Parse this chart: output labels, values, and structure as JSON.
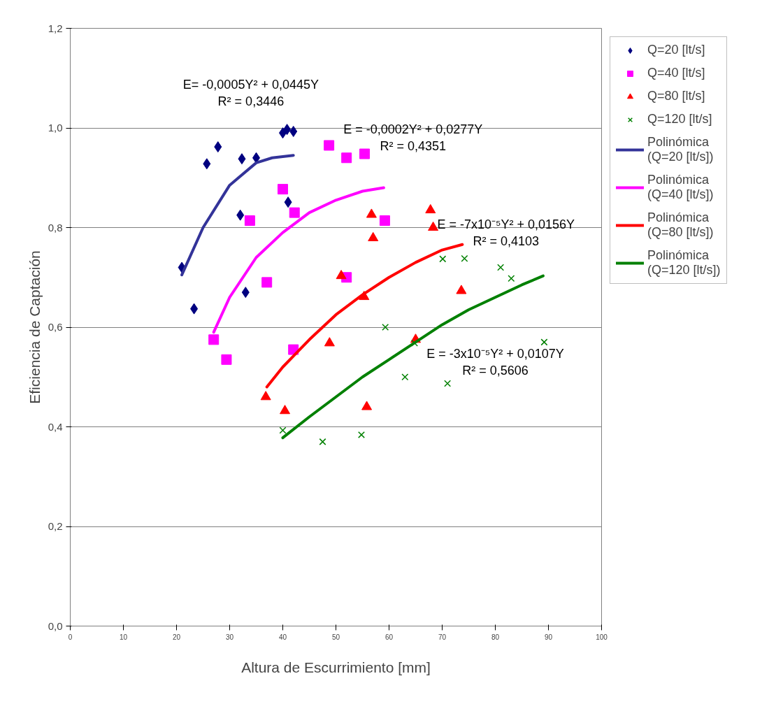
{
  "chart_data": {
    "type": "scatter",
    "xlabel": "Altura de Escurrimiento [mm]",
    "ylabel": "Eficiencia de Captación",
    "xlim": [
      0,
      100
    ],
    "xticks": [
      0,
      10,
      20,
      30,
      40,
      50,
      60,
      70,
      80,
      90,
      100
    ],
    "ylim": [
      0,
      1.2
    ],
    "yticks": [
      {
        "value": 0,
        "label": "0,0"
      },
      {
        "value": 0.2,
        "label": "0,2"
      },
      {
        "value": 0.4,
        "label": "0,4"
      },
      {
        "value": 0.6,
        "label": "0,6"
      },
      {
        "value": 0.8,
        "label": "0,8"
      },
      {
        "value": 1.0,
        "label": "1,0"
      },
      {
        "value": 1.2,
        "label": "1,2"
      }
    ],
    "grid": "y",
    "legend": "right",
    "annotations": [
      "E= -0,0005Y² + 0,0445Y\nR² = 0,3446",
      "E = -0,0002Y² + 0,0277Y\nR² = 0,4351",
      "E = -7x10⁻⁵Y² + 0,0156Y\nR² = 0,4103",
      "E = -3x10⁻⁵Y² + 0,0107Y\nR² = 0,5606"
    ],
    "series": [
      {
        "name": "Q=20 [lt/s]",
        "marker": "diamond",
        "color": "#000080",
        "x": [
          21,
          23.3,
          25.7,
          27.8,
          32,
          32.3,
          33,
          35,
          40,
          40.8,
          41,
          42
        ],
        "values": [
          0.72,
          0.637,
          0.928,
          0.962,
          0.825,
          0.938,
          0.67,
          0.94,
          0.99,
          0.997,
          0.851,
          0.993
        ]
      },
      {
        "name": "Q=40 [lt/s]",
        "marker": "square",
        "color": "#ff00ff",
        "x": [
          27,
          29.4,
          33.8,
          37,
          40,
          42,
          42.2,
          48.7,
          52,
          52,
          55.4,
          59.2
        ],
        "values": [
          0.575,
          0.535,
          0.814,
          0.69,
          0.877,
          0.555,
          0.83,
          0.965,
          0.94,
          0.7,
          0.948,
          0.814
        ]
      },
      {
        "name": "Q=80 [lt/s]",
        "marker": "triangle",
        "color": "#ff0000",
        "x": [
          36.8,
          40.4,
          48.8,
          51,
          55.3,
          55.8,
          56.7,
          57,
          65,
          67.8,
          68.3,
          73.6
        ],
        "values": [
          0.46,
          0.432,
          0.568,
          0.703,
          0.661,
          0.44,
          0.826,
          0.779,
          0.575,
          0.835,
          0.8,
          0.673
        ]
      },
      {
        "name": "Q=120 [lt/s]",
        "marker": "cross",
        "color": "#008000",
        "x": [
          40,
          47.5,
          54.8,
          59.3,
          63,
          64.8,
          70.1,
          71,
          74.2,
          81,
          83,
          89.2
        ],
        "values": [
          0.393,
          0.37,
          0.384,
          0.6,
          0.5,
          0.568,
          0.737,
          0.487,
          0.738,
          0.72,
          0.698,
          0.57
        ]
      },
      {
        "name": "Polinómica\n(Q=20 [lt/s])",
        "type": "line",
        "line_style": "solid",
        "color": "#333399",
        "x": [
          21,
          25,
          30,
          35,
          38,
          42
        ],
        "values": [
          0.705,
          0.8,
          0.885,
          0.93,
          0.94,
          0.945
        ]
      },
      {
        "name": "Polinómica\n(Q=40 [lt/s])",
        "type": "line",
        "line_style": "solid",
        "color": "#ff00ff",
        "x": [
          27,
          30,
          35,
          40,
          45,
          50,
          55,
          59
        ],
        "values": [
          0.59,
          0.66,
          0.74,
          0.79,
          0.83,
          0.855,
          0.873,
          0.88
        ]
      },
      {
        "name": "Polinómica\n(Q=80 [lt/s])",
        "type": "line",
        "line_style": "solid",
        "color": "#ff0000",
        "x": [
          37,
          40,
          45,
          50,
          55,
          60,
          65,
          70,
          73.8
        ],
        "values": [
          0.48,
          0.52,
          0.575,
          0.625,
          0.665,
          0.7,
          0.73,
          0.755,
          0.766
        ]
      },
      {
        "name": "Polinómica\n(Q=120 [lt/s])",
        "type": "line",
        "line_style": "solid",
        "color": "#008000",
        "x": [
          40,
          45,
          50,
          55,
          60,
          65,
          70,
          75,
          80,
          85,
          89
        ],
        "values": [
          0.378,
          0.42,
          0.46,
          0.5,
          0.535,
          0.57,
          0.605,
          0.635,
          0.66,
          0.685,
          0.703
        ]
      }
    ]
  }
}
